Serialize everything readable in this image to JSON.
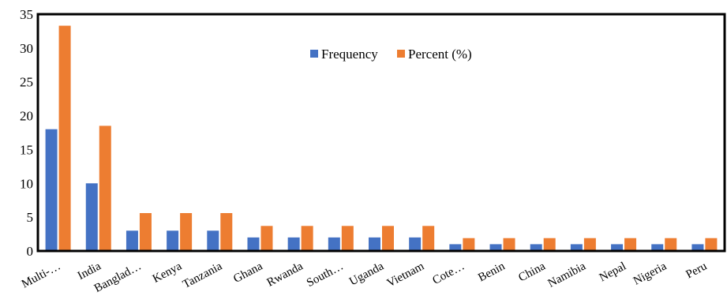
{
  "chart_data": {
    "type": "bar",
    "title": "",
    "xlabel": "",
    "ylabel": "",
    "ylim": [
      0,
      35
    ],
    "yticks": [
      0,
      5,
      10,
      15,
      20,
      25,
      30,
      35
    ],
    "grid": false,
    "legend_position": "top-center",
    "categories": [
      "Multi-…",
      "India",
      "Banglad…",
      "Kenya",
      "Tanzania",
      "Ghana",
      "Rwanda",
      "South…",
      "Uganda",
      "Vietnam",
      "Cote…",
      "Benin",
      "China",
      "Namibia",
      "Nepal",
      "Nigeria",
      "Peru"
    ],
    "series": [
      {
        "name": "Frequency",
        "color": "#4472c4",
        "values": [
          18,
          10,
          3,
          3,
          3,
          2,
          2,
          2,
          2,
          2,
          1,
          1,
          1,
          1,
          1,
          1,
          1
        ]
      },
      {
        "name": "Percent (%)",
        "color": "#ed7d31",
        "values": [
          33.3,
          18.5,
          5.6,
          5.6,
          5.6,
          3.7,
          3.7,
          3.7,
          3.7,
          3.7,
          1.9,
          1.9,
          1.9,
          1.9,
          1.9,
          1.9,
          1.9
        ]
      }
    ]
  }
}
